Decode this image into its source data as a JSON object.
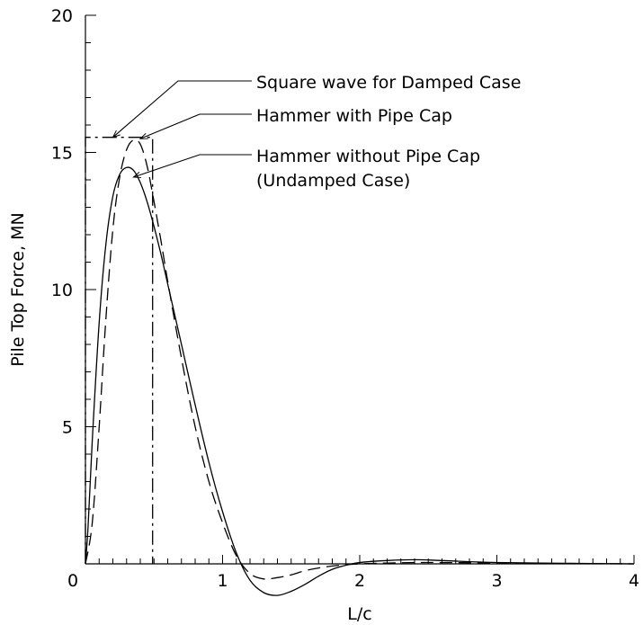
{
  "chart_data": {
    "type": "line",
    "title": "",
    "xlabel": "L/c",
    "ylabel": "Pile Top Force, MN",
    "xlim": [
      0,
      4
    ],
    "ylim": [
      0,
      20
    ],
    "x_ticks": [
      "0",
      "1",
      "2",
      "3",
      "4"
    ],
    "y_ticks": [
      "5",
      "10",
      "15",
      "20"
    ],
    "grid": false,
    "series": [
      {
        "name": "Hammer without Pipe Cap (Undamped Case)",
        "line_style": "solid",
        "x": [
          0,
          0.02,
          0.05,
          0.1,
          0.15,
          0.2,
          0.25,
          0.3,
          0.35,
          0.4,
          0.45,
          0.5,
          0.55,
          0.6,
          0.7,
          0.8,
          0.9,
          1.0,
          1.1,
          1.2,
          1.3,
          1.4,
          1.5,
          1.6,
          1.7,
          1.8,
          1.9,
          2.0,
          2.2,
          2.4,
          2.6,
          2.8,
          3.0,
          3.5,
          4.0
        ],
        "y": [
          0,
          1.4,
          4.5,
          8.8,
          11.7,
          13.4,
          14.2,
          14.45,
          14.35,
          13.9,
          13.2,
          12.3,
          11.3,
          10.2,
          8.0,
          5.8,
          3.7,
          1.9,
          0.4,
          -0.6,
          -1.05,
          -1.15,
          -1.0,
          -0.75,
          -0.45,
          -0.2,
          -0.05,
          0.05,
          0.12,
          0.15,
          0.12,
          0.08,
          0.05,
          0.02,
          0
        ]
      },
      {
        "name": "Hammer with Pipe Cap",
        "line_style": "dashed",
        "x": [
          0,
          0.05,
          0.1,
          0.15,
          0.2,
          0.25,
          0.3,
          0.35,
          0.4,
          0.45,
          0.5,
          0.55,
          0.6,
          0.7,
          0.8,
          0.9,
          1.0,
          1.1,
          1.2,
          1.3,
          1.4,
          1.5,
          1.6,
          1.7,
          1.8,
          1.9,
          2.0,
          2.2,
          2.5,
          3.0,
          3.5,
          4.0
        ],
        "y": [
          0,
          1.5,
          5.0,
          9.0,
          12.2,
          14.1,
          15.1,
          15.45,
          15.3,
          14.5,
          13.2,
          11.8,
          10.3,
          7.5,
          5.0,
          3.0,
          1.5,
          0.3,
          -0.35,
          -0.55,
          -0.5,
          -0.4,
          -0.25,
          -0.15,
          -0.08,
          -0.03,
          0,
          0.03,
          0.05,
          0.03,
          0.01,
          0
        ]
      },
      {
        "name": "Square wave for Damped Case",
        "line_style": "dashdot",
        "x": [
          0.0,
          0.0,
          0.49,
          0.49
        ],
        "y": [
          0.0,
          15.55,
          15.55,
          0.0
        ]
      }
    ],
    "annotations": [
      {
        "text": "Square wave for Damped Case",
        "target": [
          0.2,
          15.55
        ]
      },
      {
        "text": "Hammer with Pipe Cap",
        "target": [
          0.4,
          15.5
        ]
      },
      {
        "text": "Hammer without Pipe Cap",
        "text2": "(Undamped Case)",
        "target": [
          0.35,
          14.1
        ]
      }
    ]
  }
}
